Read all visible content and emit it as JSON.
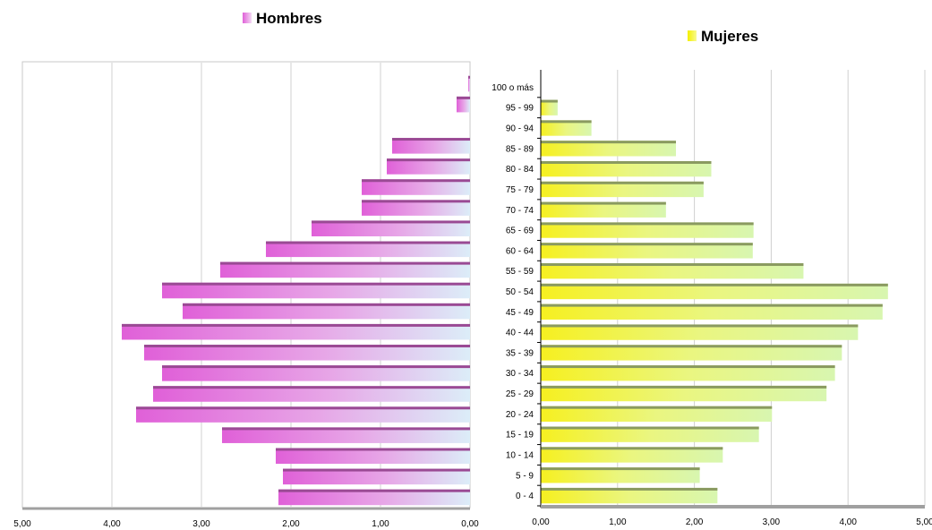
{
  "chart_data": [
    {
      "type": "bar",
      "orientation": "horizontal",
      "title": "Hombres",
      "legend_color": "#e060d8",
      "xaxis": "reversed",
      "xlim": [
        0,
        5
      ],
      "xticks": [
        "5,00",
        "4,00",
        "3,00",
        "2,00",
        "1,00",
        "0,00"
      ],
      "categories": [
        "0 - 4",
        "5 - 9",
        "10 - 14",
        "15 - 19",
        "20 - 24",
        "25 - 29",
        "30 - 34",
        "35 - 39",
        "40 - 44",
        "45 - 49",
        "50 - 54",
        "55 - 59",
        "60 - 64",
        "65 - 69",
        "70 - 74",
        "75 - 79",
        "80 - 84",
        "85 - 89",
        "90 - 94",
        "95 - 99",
        "100 o más"
      ],
      "values": [
        2.14,
        2.09,
        2.17,
        2.77,
        3.73,
        3.54,
        3.44,
        3.64,
        3.89,
        3.21,
        3.44,
        2.79,
        2.28,
        1.77,
        1.21,
        1.21,
        0.93,
        0.87,
        0.0,
        0.15,
        0.02
      ],
      "grid": true,
      "colors": {
        "bar_dark": "#e060d8",
        "bar_light": "#dcedf8",
        "bar_top": "#9a4a94"
      }
    },
    {
      "type": "bar",
      "orientation": "horizontal",
      "title": "Mujeres",
      "legend_color": "#f4f000",
      "xlim": [
        0,
        5
      ],
      "xticks": [
        "0,00",
        "1,00",
        "2,00",
        "3,00",
        "4,00",
        "5,00"
      ],
      "categories": [
        "0 - 4",
        "5 - 9",
        "10 - 14",
        "15 - 19",
        "20 - 24",
        "25 - 29",
        "30 - 34",
        "35 - 39",
        "40 - 44",
        "45 - 49",
        "50 - 54",
        "55 - 59",
        "60 - 64",
        "65 - 69",
        "70 - 74",
        "75 - 79",
        "80 - 84",
        "85 - 89",
        "90 - 94",
        "95 - 99",
        "100 o más"
      ],
      "values": [
        2.3,
        2.07,
        2.37,
        2.84,
        3.01,
        3.72,
        3.83,
        3.92,
        4.13,
        4.45,
        4.52,
        3.42,
        2.76,
        2.77,
        1.63,
        2.12,
        2.22,
        1.76,
        0.66,
        0.22,
        0.0
      ],
      "grid": true,
      "colors": {
        "bar_dark": "#f6f020",
        "bar_light": "#d8f6b0",
        "bar_top": "#8a9a60"
      }
    }
  ]
}
